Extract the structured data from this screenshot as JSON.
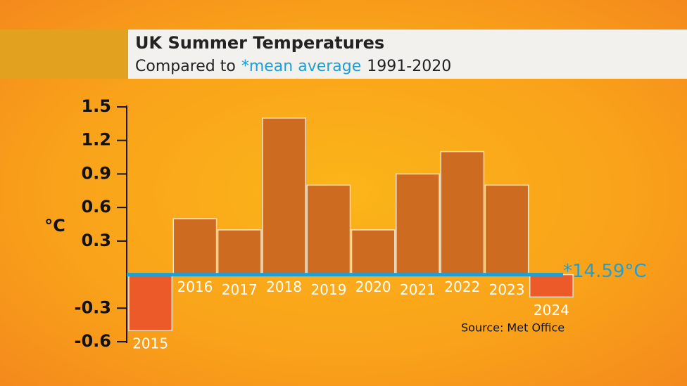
{
  "chart_data": {
    "type": "bar",
    "title": "UK Summer Temperatures",
    "subtitle": [
      "Compared to",
      "*mean average",
      "1991-2020"
    ],
    "y_label": "°C",
    "baseline_label": "*14.59°C",
    "source": "Source: Met Office",
    "categories": [
      "2015",
      "2016",
      "2017",
      "2018",
      "2019",
      "2020",
      "2021",
      "2022",
      "2023",
      "2024"
    ],
    "values": [
      -0.5,
      0.5,
      0.4,
      1.4,
      0.8,
      0.4,
      0.9,
      1.1,
      0.8,
      -0.2
    ],
    "colors": [
      "#ec5a2a",
      "#cd6b20",
      "#cd6b20",
      "#cd6b20",
      "#cd6b20",
      "#cd6b20",
      "#cd6b20",
      "#cd6b20",
      "#cd6b20",
      "#ec5a2a"
    ],
    "baseline_color": "#1f9fd2",
    "ylim": [
      -0.6,
      1.5
    ],
    "yticks": [
      1.5,
      1.2,
      0.9,
      0.6,
      0.3,
      -0.3,
      -0.6
    ]
  }
}
